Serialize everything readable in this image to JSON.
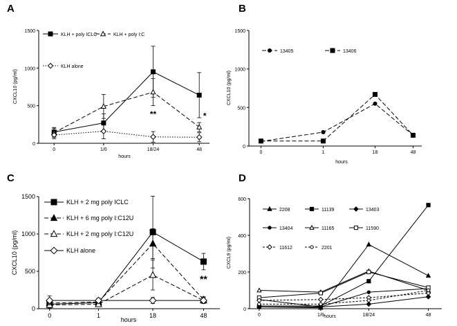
{
  "chart_data": [
    {
      "panel": "A",
      "type": "line",
      "xlabel": "hours",
      "ylabel": "CXCL10 (pg/ml)",
      "categories": [
        "0",
        "1/6",
        "18/24",
        "48"
      ],
      "ylim": [
        0,
        1500
      ],
      "yticks": [
        "0",
        "500",
        "1000",
        "1500"
      ],
      "series": [
        {
          "name": "KLH + poly ICLC",
          "marker": "square",
          "dash": "solid",
          "values": [
            150,
            270,
            950,
            640
          ],
          "err": [
            60,
            120,
            340,
            300
          ]
        },
        {
          "name": "KLH + poly I:C",
          "marker": "triangle-open",
          "dash": "long",
          "values": [
            140,
            490,
            680,
            215
          ],
          "err": [
            60,
            160,
            180,
            60
          ]
        },
        {
          "name": "KLH alone",
          "marker": "diamond-open",
          "dash": "dotted",
          "values": [
            110,
            160,
            85,
            80
          ],
          "err": [
            50,
            100,
            70,
            60
          ]
        }
      ],
      "annotations": [
        {
          "text": "**",
          "x": "18/24",
          "y": 350
        },
        {
          "text": "*",
          "x": "48",
          "y": 325
        }
      ]
    },
    {
      "panel": "B",
      "type": "line",
      "xlabel": "hours",
      "ylabel": "CXCL10 (pg/ml)",
      "categories": [
        "0",
        "1",
        "18",
        "48"
      ],
      "ylim": [
        0,
        1500
      ],
      "yticks": [
        "0",
        "500",
        "1000",
        "1500"
      ],
      "series": [
        {
          "name": "13405",
          "marker": "dot",
          "dash": "long",
          "values": [
            60,
            180,
            550,
            140
          ]
        },
        {
          "name": "13406",
          "marker": "square",
          "dash": "long",
          "values": [
            65,
            65,
            670,
            140
          ]
        }
      ]
    },
    {
      "panel": "C",
      "type": "line",
      "xlabel": "hours",
      "ylabel": "CXCL10 (pg/ml)",
      "categories": [
        "0",
        "1",
        "18",
        "48"
      ],
      "ylim": [
        0,
        1500
      ],
      "yticks": [
        "0",
        "500",
        "1000",
        "1500"
      ],
      "series": [
        {
          "name": "KLH + 2 mg poly ICLC",
          "marker": "square",
          "dash": "solid",
          "values": [
            60,
            80,
            1025,
            630
          ],
          "err": [
            50,
            40,
            480,
            110
          ]
        },
        {
          "name": "KLH + 6 mg poly I:C12U",
          "marker": "triangle",
          "dash": "long",
          "values": [
            75,
            90,
            870,
            120
          ],
          "err": [
            40,
            40,
            200,
            40
          ]
        },
        {
          "name": "KLH + 2 mg poly I:C12U",
          "marker": "triangle-open",
          "dash": "long",
          "values": [
            50,
            60,
            450,
            110
          ],
          "err": [
            40,
            30,
            200,
            40
          ]
        },
        {
          "name": "KLH alone",
          "marker": "diamond-open",
          "dash": "solid",
          "values": [
            110,
            110,
            110,
            110
          ],
          "err": [
            60,
            30,
            40,
            30
          ]
        }
      ],
      "annotations": [
        {
          "text": "**",
          "x": "48",
          "y": 350
        }
      ]
    },
    {
      "panel": "D",
      "type": "line",
      "xlabel": "hours",
      "ylabel": "CXCL9 (pg/ml)",
      "categories": [
        "0",
        "1/6",
        "18/24",
        "48"
      ],
      "ylim": [
        0,
        600
      ],
      "yticks": [
        "0",
        "200",
        "400",
        "600"
      ],
      "series": [
        {
          "name": "2208",
          "marker": "triangle",
          "dash": "solid",
          "values": [
            10,
            5,
            350,
            180
          ]
        },
        {
          "name": "11139",
          "marker": "square",
          "dash": "solid",
          "values": [
            15,
            15,
            150,
            565
          ]
        },
        {
          "name": "13403",
          "marker": "diamond",
          "dash": "solid",
          "values": [
            10,
            10,
            25,
            65
          ]
        },
        {
          "name": "13404",
          "marker": "dot",
          "dash": "solid",
          "values": [
            50,
            10,
            90,
            110
          ]
        },
        {
          "name": "11165",
          "marker": "triangle-open",
          "dash": "solid",
          "values": [
            100,
            90,
            205,
            100
          ]
        },
        {
          "name": "11590",
          "marker": "square-open",
          "dash": "solid",
          "values": [
            60,
            85,
            200,
            115
          ]
        },
        {
          "name": "11612",
          "marker": "diamond-open",
          "dash": "short",
          "values": [
            45,
            50,
            60,
            85
          ]
        },
        {
          "name": "2201",
          "marker": "dot-open",
          "dash": "short",
          "values": [
            25,
            25,
            45,
            100
          ]
        }
      ]
    }
  ]
}
